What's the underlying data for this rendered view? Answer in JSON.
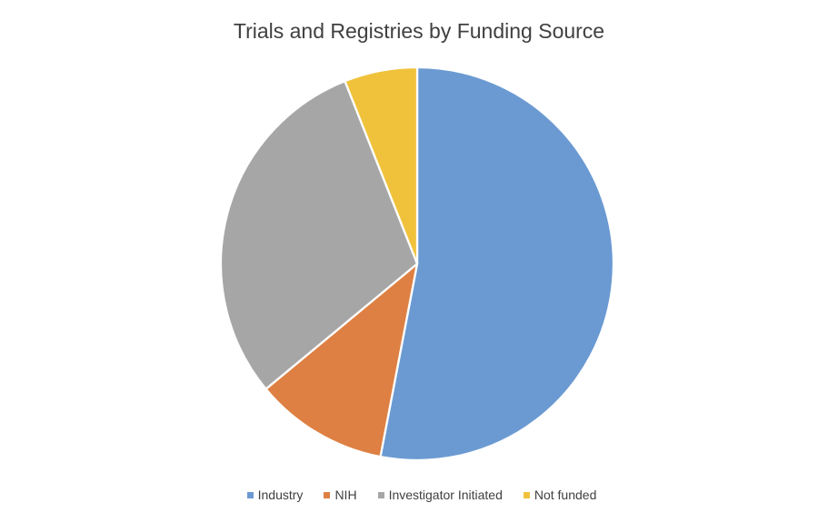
{
  "chart_data": {
    "type": "pie",
    "title": "Trials and Registries by Funding Source",
    "categories": [
      "Industry",
      "NIH",
      "Investigator Initiated",
      "Not funded"
    ],
    "values": [
      53,
      11,
      30,
      6
    ],
    "unit": "percent_of_total",
    "colors": [
      "#6B9AD2",
      "#DE8043",
      "#A6A6A6",
      "#F0C23C"
    ],
    "start_angle_deg": 0,
    "direction": "clockwise",
    "slice_border_color": "#FFFFFF",
    "legend_position": "bottom",
    "title_color": "#404040"
  }
}
